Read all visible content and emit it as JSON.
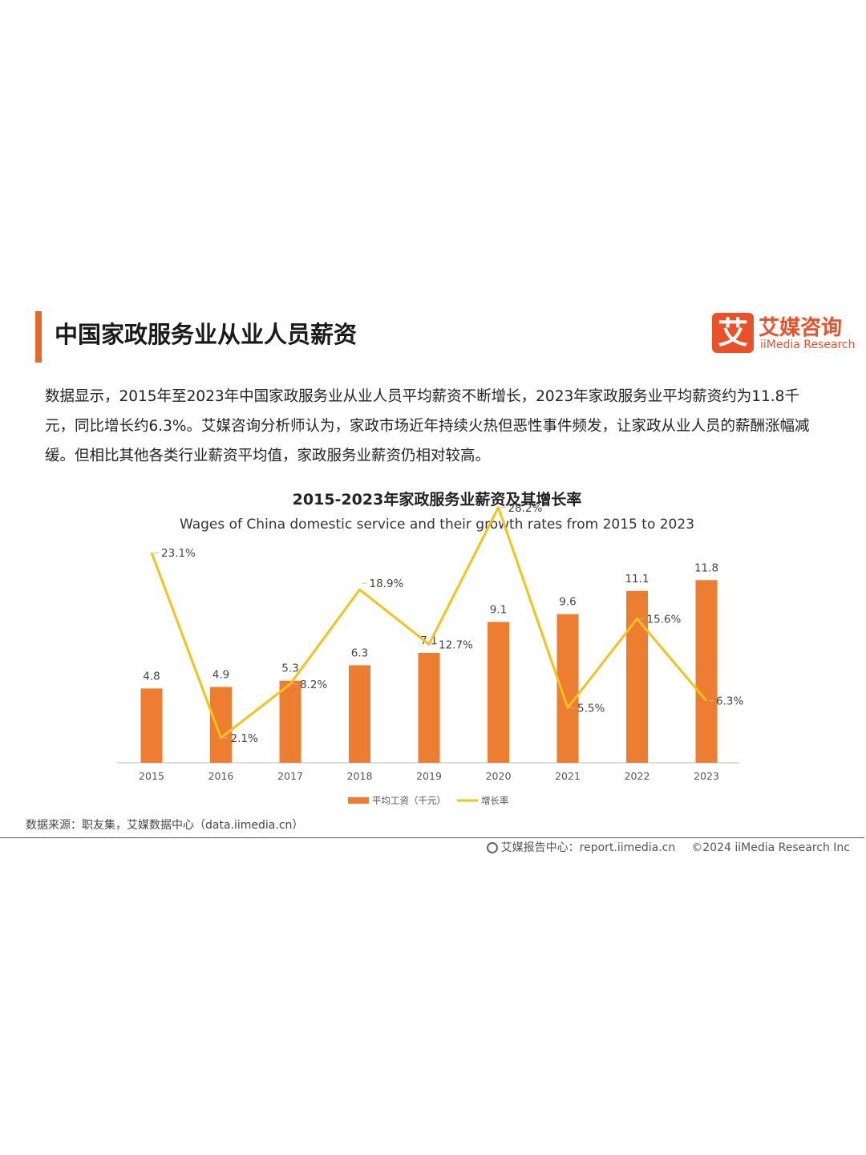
{
  "header": {
    "title": "中国家政服务业从业人员薪资",
    "logo_mark": "艾",
    "logo_cn": "艾媒咨询",
    "logo_en": "iiMedia Research"
  },
  "description": "数据显示，2015年至2023年中国家政服务业从业人员平均薪资不断增长，2023年家政服务业平均薪资约为11.8千元，同比增长约6.3%。艾媒咨询分析师认为，家政市场近年持续火热但恶性事件频发，让家政从业人员的薪酬涨幅减缓。但相比其他各类行业薪资平均值，家政服务业薪资仍相对较高。",
  "chart_data": {
    "type": "bar",
    "title": "2015-2023年家政服务业薪资及其增长率",
    "subtitle": "Wages of China domestic service and their growth rates from 2015 to 2023",
    "categories": [
      "2015",
      "2016",
      "2017",
      "2018",
      "2019",
      "2020",
      "2021",
      "2022",
      "2023"
    ],
    "series": [
      {
        "name": "平均工资（千元）",
        "type": "bar",
        "values": [
          4.8,
          4.9,
          5.3,
          6.3,
          7.1,
          9.1,
          9.6,
          11.1,
          11.8
        ],
        "labels": [
          "4.8",
          "4.9",
          "5.3",
          "6.3",
          "7.1",
          "9.1",
          "9.6",
          "11.1",
          "11.8"
        ],
        "color": "#ed7d31"
      },
      {
        "name": "增长率",
        "type": "line",
        "values": [
          23.1,
          2.1,
          8.2,
          18.9,
          12.7,
          28.2,
          5.5,
          15.6,
          6.3
        ],
        "labels": [
          "23.1%",
          "2.1%",
          "8.2%",
          "18.9%",
          "12.7%",
          "28.2%",
          "5.5%",
          "15.6%",
          "6.3%"
        ],
        "color": "#f5c21a"
      }
    ],
    "legend": "bottom",
    "grid": false
  },
  "source": "数据来源：职友集，艾媒数据中心（data.iimedia.cn）",
  "footer": {
    "report": "艾媒报告中心：report.iimedia.cn",
    "copyright": "©2024  iiMedia Research  Inc"
  }
}
